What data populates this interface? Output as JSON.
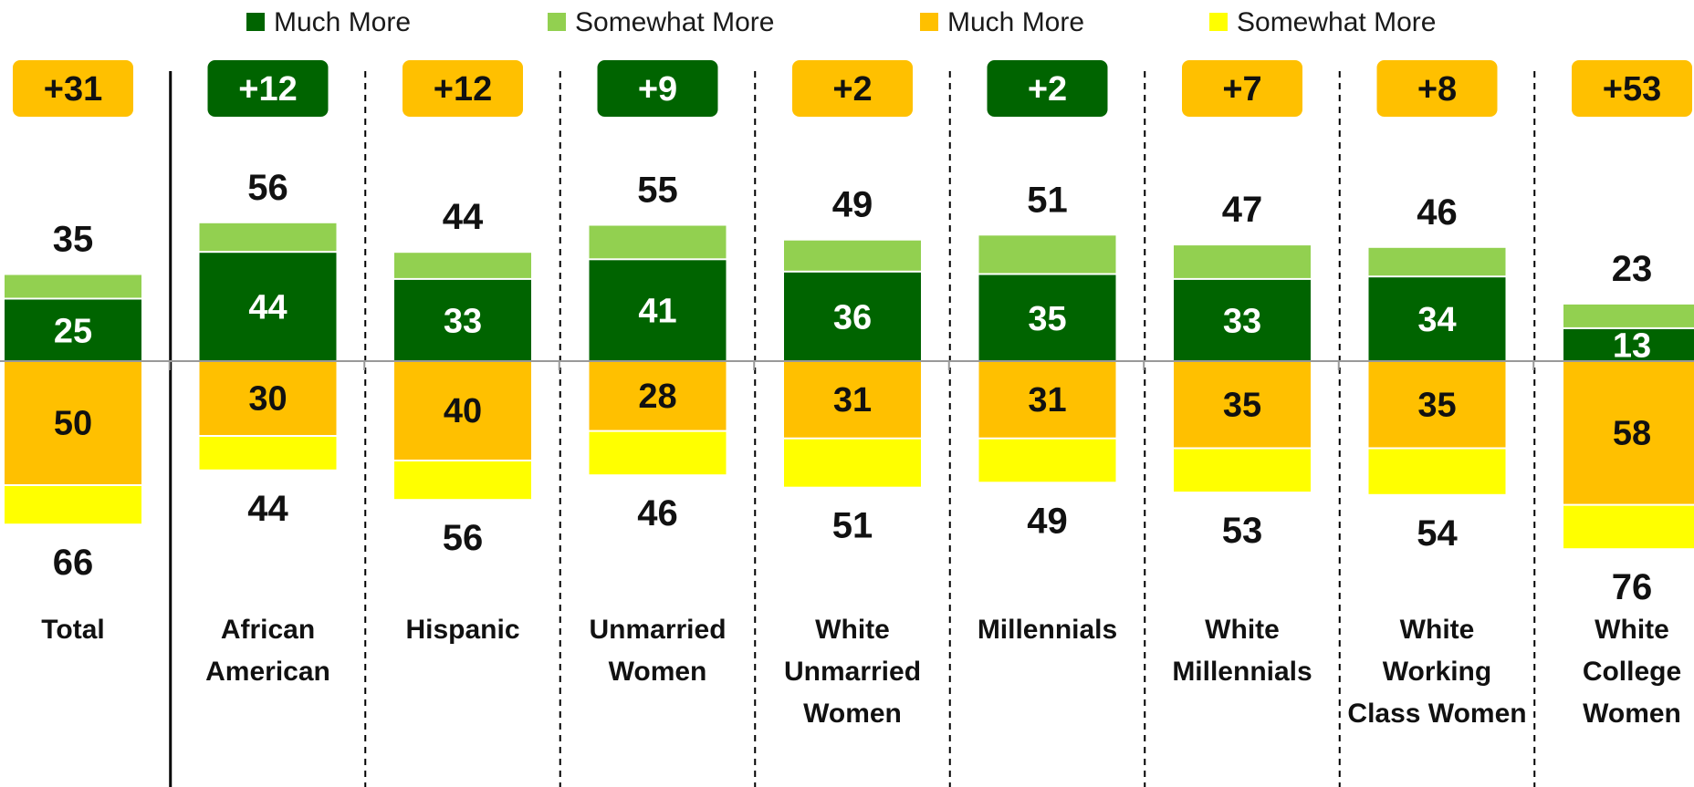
{
  "chart_data": {
    "type": "bar",
    "stacked": true,
    "diverging": true,
    "colors": {
      "much_more_positive": "#006400",
      "somewhat_more_positive": "#92d050",
      "much_more_negative": "#ffc000",
      "somewhat_more_negative": "#ffff00",
      "net_positive_box": "#006400",
      "net_negative_box": "#ffc000",
      "axis": "#999999",
      "separator": "#000000"
    },
    "legend": {
      "placement": "top",
      "items": [
        {
          "label": "Much More",
          "color": "#006400"
        },
        {
          "label": "Somewhat More",
          "color": "#92d050"
        },
        {
          "label": "Much More",
          "color": "#ffc000"
        },
        {
          "label": "Somewhat More",
          "color": "#ffff00"
        }
      ]
    },
    "categories": [
      {
        "label_lines": [
          "Total"
        ],
        "net": "+31",
        "net_side": "negative",
        "pos_total": 35,
        "pos_much": 25,
        "neg_total": 66,
        "neg_much": 50
      },
      {
        "label_lines": [
          "African",
          "American"
        ],
        "net": "+12",
        "net_side": "positive",
        "pos_total": 56,
        "pos_much": 44,
        "neg_total": 44,
        "neg_much": 30
      },
      {
        "label_lines": [
          "Hispanic"
        ],
        "net": "+12",
        "net_side": "negative",
        "pos_total": 44,
        "pos_much": 33,
        "neg_total": 56,
        "neg_much": 40
      },
      {
        "label_lines": [
          "Unmarried",
          "Women"
        ],
        "net": "+9",
        "net_side": "positive",
        "pos_total": 55,
        "pos_much": 41,
        "neg_total": 46,
        "neg_much": 28
      },
      {
        "label_lines": [
          "White",
          "Unmarried",
          "Women"
        ],
        "net": "+2",
        "net_side": "negative",
        "pos_total": 49,
        "pos_much": 36,
        "neg_total": 51,
        "neg_much": 31
      },
      {
        "label_lines": [
          "Millennials"
        ],
        "net": "+2",
        "net_side": "positive",
        "pos_total": 51,
        "pos_much": 35,
        "neg_total": 49,
        "neg_much": 31
      },
      {
        "label_lines": [
          "White",
          "Millennials"
        ],
        "net": "+7",
        "net_side": "negative",
        "pos_total": 47,
        "pos_much": 33,
        "neg_total": 53,
        "neg_much": 35
      },
      {
        "label_lines": [
          "White",
          "Working",
          "Class Women"
        ],
        "net": "+8",
        "net_side": "negative",
        "pos_total": 46,
        "pos_much": 34,
        "neg_total": 54,
        "neg_much": 35
      },
      {
        "label_lines": [
          "White",
          "College",
          "Women"
        ],
        "net": "+53",
        "net_side": "negative",
        "pos_total": 23,
        "pos_much": 13,
        "neg_total": 76,
        "neg_much": 58
      }
    ]
  }
}
